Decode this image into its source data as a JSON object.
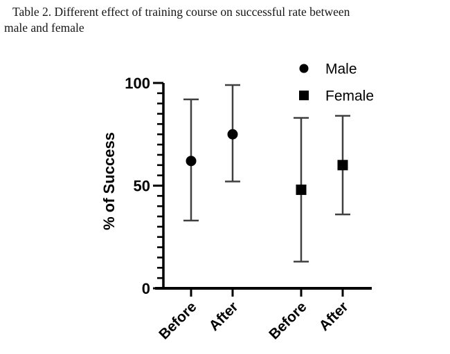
{
  "caption": {
    "line1": "Table 2. Different effect of training course on successful rate between",
    "line2": "male and female"
  },
  "chart_data": {
    "type": "scatter",
    "title": "",
    "xlabel": "",
    "ylabel": "% of Success",
    "ylim": [
      0,
      100
    ],
    "yticks_major": [
      0,
      50,
      100
    ],
    "ytick_minor_step": 5,
    "grid": "off",
    "legend_position": "top-right",
    "categories": [
      "Before",
      "After",
      "Before",
      "After"
    ],
    "series": [
      {
        "name": "Male",
        "marker": "circle",
        "points": [
          {
            "category": "Before",
            "x_index": 0,
            "mean": 62,
            "upper": 92,
            "lower": 33
          },
          {
            "category": "After",
            "x_index": 1,
            "mean": 75,
            "upper": 99,
            "lower": 52
          }
        ]
      },
      {
        "name": "Female",
        "marker": "square",
        "points": [
          {
            "category": "Before",
            "x_index": 2,
            "mean": 48,
            "upper": 83,
            "lower": 13
          },
          {
            "category": "After",
            "x_index": 3,
            "mean": 60,
            "upper": 84,
            "lower": 36
          }
        ]
      }
    ],
    "colors": {
      "marker": "#000000",
      "error_bar": "#404040",
      "axis": "#000000",
      "text": "#000000"
    }
  }
}
